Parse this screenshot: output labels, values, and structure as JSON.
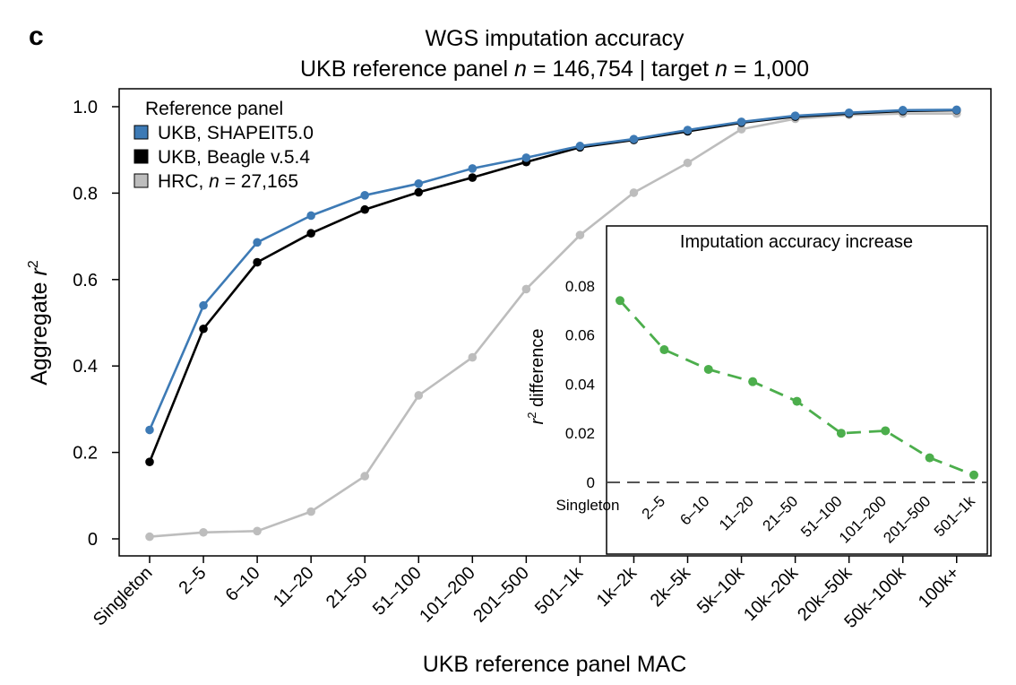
{
  "panel_letter": "c",
  "chart_data": [
    {
      "type": "line",
      "title": "WGS imputation accuracy",
      "subtitle": {
        "part1": "UKB reference panel ",
        "n1": "n",
        "part2": " = 146,754 | target ",
        "n2": "n",
        "part3": " = 1,000"
      },
      "xlabel": "UKB reference panel MAC",
      "ylabel": {
        "text": "Aggregate ",
        "var": "r",
        "sup": "2"
      },
      "ylim": [
        0,
        1.0
      ],
      "yticks": [
        0,
        0.2,
        0.4,
        0.6,
        0.8,
        1.0
      ],
      "ytick_labels": [
        "0",
        "0.2",
        "0.4",
        "0.6",
        "0.8",
        "1.0"
      ],
      "categories": [
        "Singleton",
        "2–5",
        "6–10",
        "11–20",
        "21–50",
        "51–100",
        "101–200",
        "201–500",
        "501–1k",
        "1k–2k",
        "2k–5k",
        "5k–10k",
        "10k–20k",
        "20k–50k",
        "50k–100k",
        "100k+"
      ],
      "legend": {
        "title": "Reference panel",
        "placement": "top-left",
        "entries": [
          {
            "text": "UKB, SHAPEIT5.0"
          },
          {
            "text": "UKB, Beagle v.5.4"
          },
          {
            "prefix": "HRC, ",
            "var": "n",
            "suffix": " = 27,165"
          }
        ]
      },
      "series": [
        {
          "key": "hrc",
          "color": "#bdbdbd",
          "values": [
            0.005,
            0.015,
            0.018,
            0.063,
            0.145,
            0.332,
            0.42,
            0.578,
            0.703,
            0.801,
            0.87,
            0.948,
            0.972,
            0.981,
            0.984,
            0.984
          ]
        },
        {
          "key": "beagle",
          "color": "#000000",
          "values": [
            0.178,
            0.486,
            0.64,
            0.707,
            0.762,
            0.802,
            0.836,
            0.872,
            0.906,
            0.923,
            0.943,
            0.963,
            0.977,
            0.984,
            0.99,
            0.992
          ]
        },
        {
          "key": "shapeit",
          "color": "#3d7ab5",
          "values": [
            0.252,
            0.54,
            0.686,
            0.748,
            0.795,
            0.822,
            0.857,
            0.882,
            0.909,
            0.925,
            0.946,
            0.965,
            0.979,
            0.986,
            0.992,
            0.993
          ]
        }
      ]
    },
    {
      "type": "line",
      "title": "Imputation accuracy increase",
      "ylabel": {
        "var": "r",
        "sup": "2",
        "text": " difference"
      },
      "ylim": [
        -0.003,
        0.1
      ],
      "yticks": [
        0,
        0.02,
        0.04,
        0.06,
        0.08
      ],
      "ytick_labels": [
        "0",
        "0.02",
        "0.04",
        "0.06",
        "0.08"
      ],
      "categories": [
        "Singleton",
        "2–5",
        "6–10",
        "11–20",
        "21–50",
        "51–100",
        "101–200",
        "201–500",
        "501–1k"
      ],
      "reference_line": {
        "y": 0,
        "style": "dashed",
        "color": "#555555"
      },
      "series": [
        {
          "key": "difference",
          "color": "#4cae4c",
          "style": "dashed",
          "values": [
            0.074,
            0.054,
            0.046,
            0.041,
            0.033,
            0.02,
            0.021,
            0.01,
            0.003
          ]
        }
      ]
    }
  ]
}
